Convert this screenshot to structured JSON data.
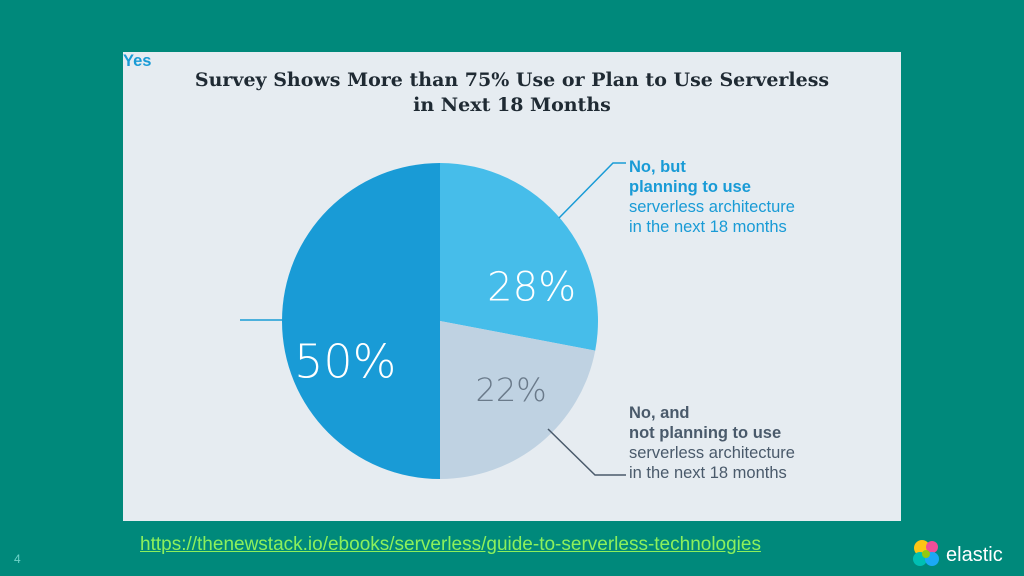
{
  "slide": {
    "background_color": "#00897b",
    "slide_number": "4",
    "source_link": "https://thenewstack.io/ebooks/serverless/guide-to-serverless-technologies",
    "logo_text": "elastic"
  },
  "chart_data": {
    "type": "pie",
    "title_line1": "Survey Shows More than 75% Use or Plan to Use Serverless",
    "title_line2": "in Next 18 Months",
    "slices": [
      {
        "label": "Yes",
        "value": 50,
        "value_label": "50%",
        "color": "#199bd6"
      },
      {
        "label": "No, but planning to use serverless architecture in the next 18 months",
        "value": 28,
        "value_label": "28%",
        "color": "#46bdea"
      },
      {
        "label": "No, and not planning to use serverless architecture in the next 18 months",
        "value": 22,
        "value_label": "22%",
        "color": "#bfd2e2"
      }
    ],
    "callouts": {
      "yes": "Yes",
      "planning": {
        "line1": "No, but",
        "line2": "planning to use",
        "line3": "serverless architecture",
        "line4": "in the next 18 months"
      },
      "not_planning": {
        "line1": "No, and",
        "line2": "not planning to use",
        "line3": "serverless architecture",
        "line4": "in the next 18 months"
      }
    },
    "callout_line_color": "#199bd6",
    "callout_line_color_gray": "#4a5a6b"
  }
}
